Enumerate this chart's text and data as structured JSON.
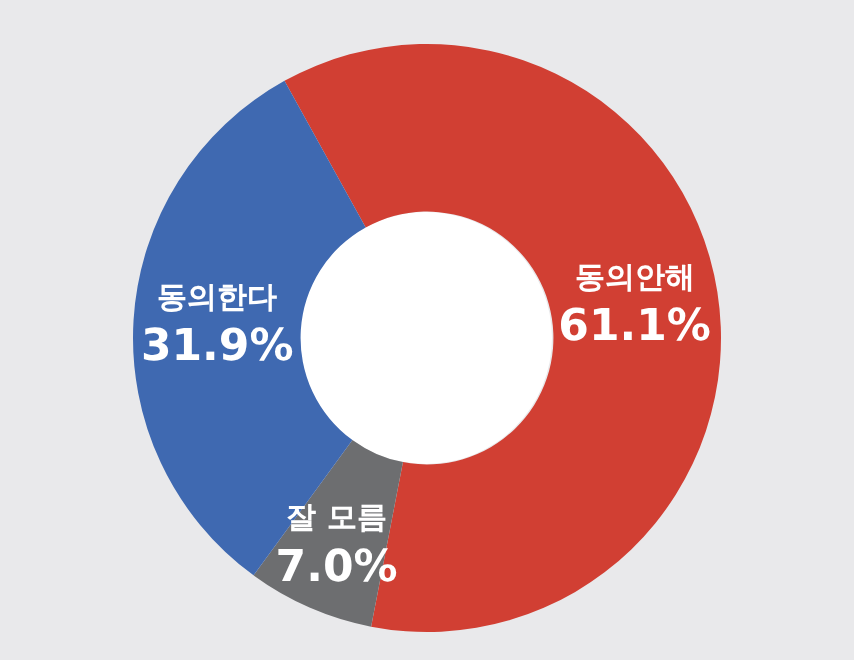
{
  "chart_data": {
    "type": "donut",
    "categories": [
      "동의안해",
      "잘 모름",
      "동의한다"
    ],
    "values": [
      61.1,
      7.0,
      31.9
    ],
    "colors": [
      "#d13f33",
      "#6d6e70",
      "#3f69b1"
    ],
    "value_labels": [
      "61.1%",
      "7.0%",
      "31.9%"
    ],
    "legend": false
  }
}
